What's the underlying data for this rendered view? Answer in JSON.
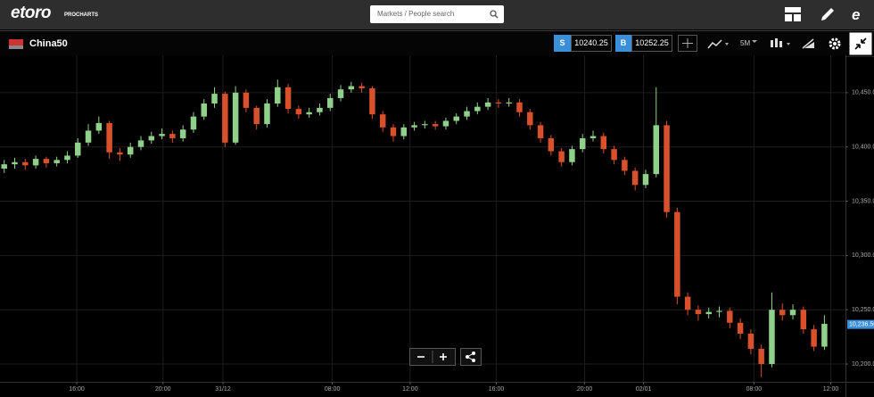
{
  "header": {
    "logo": "etoro",
    "logo_sub": "PROCHARTS",
    "search_placeholder": "Markets / People search"
  },
  "toolbar": {
    "instrument": "China50",
    "sell_label": "S",
    "sell_price": "10240.25",
    "buy_label": "B",
    "buy_price": "10252.25",
    "interval": "5M"
  },
  "chart_data": {
    "type": "candlestick",
    "up_color": "#8fd08a",
    "down_color": "#d8502c",
    "grid": true,
    "x": [
      0,
      1,
      2,
      3,
      4,
      5,
      6,
      7,
      8,
      9,
      10,
      11,
      12,
      13,
      14,
      15,
      16,
      17,
      18,
      19,
      20,
      21,
      22,
      23,
      24,
      25,
      26,
      27,
      28,
      29,
      30,
      31,
      32,
      33,
      34,
      35,
      36,
      37,
      38,
      39,
      40,
      41,
      42,
      43,
      44,
      45,
      46,
      47,
      48,
      49,
      50,
      51,
      52,
      53,
      54,
      55,
      56,
      57,
      58,
      59,
      60,
      61,
      62,
      63,
      64,
      65,
      66,
      67,
      68,
      69,
      70,
      71,
      72,
      73,
      74,
      75,
      76,
      77,
      78
    ],
    "open": [
      10380,
      10384,
      10386,
      10383,
      10389,
      10385,
      10388,
      10392,
      10404,
      10415,
      10422,
      10395,
      10393,
      10400,
      10406,
      10410,
      10412,
      10408,
      10416,
      10428,
      10440,
      10449,
      10404,
      10450,
      10436,
      10421,
      10440,
      10455,
      10435,
      10430,
      10432,
      10436,
      10445,
      10453,
      10456,
      10454,
      10430,
      10418,
      10410,
      10418,
      10420,
      10421,
      10419,
      10424,
      10428,
      10433,
      10437,
      10441,
      10440,
      10441,
      10432,
      10420,
      10408,
      10396,
      10386,
      10398,
      10408,
      10410,
      10398,
      10388,
      10378,
      10365,
      10375,
      10420,
      10340,
      10262,
      10250,
      10246,
      10248,
      10249,
      10238,
      10228,
      10214,
      10200,
      10250,
      10245,
      10250,
      10232,
      10216
    ],
    "high": [
      10388,
      10390,
      10389,
      10392,
      10391,
      10391,
      10396,
      10408,
      10421,
      10428,
      10424,
      10399,
      10404,
      10410,
      10414,
      10417,
      10415,
      10420,
      10432,
      10444,
      10455,
      10451,
      10456,
      10453,
      10438,
      10444,
      10462,
      10458,
      10438,
      10436,
      10440,
      10449,
      10457,
      10460,
      10459,
      10456,
      10433,
      10421,
      10421,
      10423,
      10424,
      10424,
      10427,
      10431,
      10437,
      10441,
      10445,
      10444,
      10445,
      10444,
      10435,
      10423,
      10411,
      10399,
      10401,
      10412,
      10415,
      10413,
      10401,
      10391,
      10381,
      10379,
      10455,
      10424,
      10344,
      10266,
      10254,
      10252,
      10253,
      10252,
      10242,
      10232,
      10218,
      10266,
      10256,
      10255,
      10253,
      10236,
      10245
    ],
    "low": [
      10376,
      10380,
      10379,
      10380,
      10381,
      10382,
      10385,
      10390,
      10401,
      10412,
      10389,
      10387,
      10390,
      10397,
      10403,
      10407,
      10404,
      10405,
      10413,
      10425,
      10436,
      10400,
      10402,
      10432,
      10416,
      10418,
      10437,
      10431,
      10426,
      10427,
      10429,
      10433,
      10442,
      10450,
      10450,
      10426,
      10414,
      10405,
      10407,
      10415,
      10417,
      10416,
      10416,
      10421,
      10425,
      10430,
      10434,
      10436,
      10437,
      10428,
      10416,
      10404,
      10392,
      10382,
      10383,
      10395,
      10405,
      10394,
      10384,
      10374,
      10360,
      10362,
      10372,
      10335,
      10255,
      10245,
      10240,
      10242,
      10243,
      10233,
      10223,
      10209,
      10188,
      10197,
      10240,
      10241,
      10228,
      10212,
      10213
    ],
    "close": [
      10384,
      10386,
      10383,
      10389,
      10385,
      10388,
      10392,
      10404,
      10415,
      10422,
      10395,
      10393,
      10400,
      10406,
      10410,
      10412,
      10408,
      10416,
      10428,
      10440,
      10449,
      10404,
      10450,
      10436,
      10421,
      10440,
      10455,
      10435,
      10430,
      10432,
      10436,
      10445,
      10453,
      10456,
      10454,
      10430,
      10418,
      10410,
      10418,
      10420,
      10421,
      10419,
      10424,
      10428,
      10433,
      10437,
      10441,
      10440,
      10441,
      10432,
      10420,
      10408,
      10396,
      10386,
      10398,
      10408,
      10410,
      10398,
      10388,
      10378,
      10365,
      10375,
      10420,
      10340,
      10262,
      10250,
      10246,
      10248,
      10249,
      10238,
      10228,
      10214,
      10200,
      10250,
      10245,
      10250,
      10232,
      10216,
      10237
    ],
    "xlim": [
      -0.4,
      80
    ],
    "xticks": [
      {
        "value": 6.9,
        "label": "16:00"
      },
      {
        "value": 15.1,
        "label": "20:00"
      },
      {
        "value": 20.8,
        "label": "31/12"
      },
      {
        "value": 31.2,
        "label": "08:00"
      },
      {
        "value": 38.6,
        "label": "12:00"
      },
      {
        "value": 46.8,
        "label": "16:00"
      },
      {
        "value": 55.2,
        "label": "20:00"
      },
      {
        "value": 60.8,
        "label": "02/01"
      },
      {
        "value": 71.3,
        "label": "08:00"
      },
      {
        "value": 78.6,
        "label": "12:00"
      }
    ],
    "ylim": [
      10183.6,
      10484.4
    ],
    "yticks": [
      {
        "value": 10200,
        "label": "10,200.0"
      },
      {
        "value": 10250,
        "label": "10,250.0"
      },
      {
        "value": 10300,
        "label": "10,300.0"
      },
      {
        "value": 10350,
        "label": "10,350.0"
      },
      {
        "value": 10400,
        "label": "10,400.0"
      },
      {
        "value": 10450,
        "label": "10,450.0"
      }
    ],
    "last_price": {
      "value": 10236.5,
      "label": "10,236.50"
    }
  }
}
